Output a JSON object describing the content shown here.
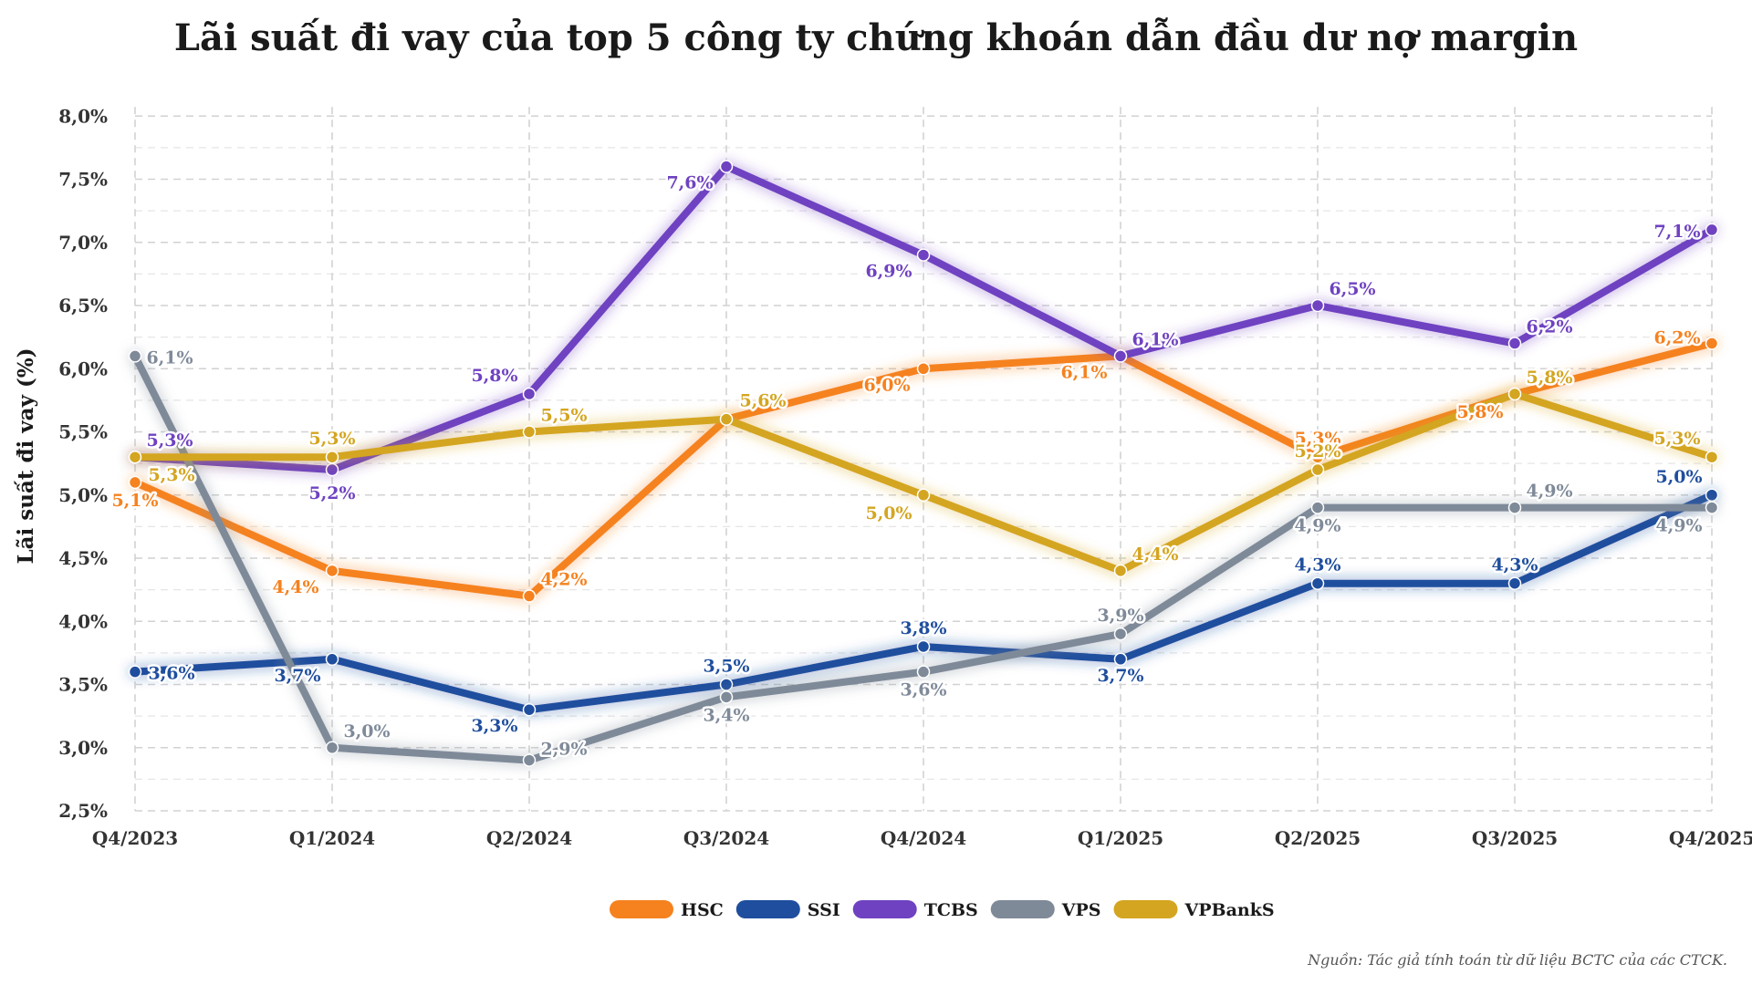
{
  "chart_data": {
    "type": "line",
    "title": "Lãi suất đi vay của top 5 công ty chứng khoán dẫn đầu dư nợ margin",
    "ylabel": "Lãi suất đi vay (%)",
    "xlabel": "",
    "categories": [
      "Q4/2023",
      "Q1/2024",
      "Q2/2024",
      "Q3/2024",
      "Q4/2024",
      "Q1/2025",
      "Q2/2025",
      "Q3/2025",
      "Q4/2025"
    ],
    "ylim": [
      2.5,
      8.0
    ],
    "yticks": [
      2.5,
      3.0,
      3.5,
      4.0,
      4.5,
      5.0,
      5.5,
      6.0,
      6.5,
      7.0,
      7.5,
      8.0
    ],
    "ytick_labels": [
      "2,5%",
      "3,0%",
      "3,5%",
      "4,0%",
      "4,5%",
      "5,0%",
      "5,5%",
      "6,0%",
      "6,5%",
      "7,0%",
      "7,5%",
      "8,0%"
    ],
    "grid": true,
    "legend_position": "bottom-center",
    "series": [
      {
        "name": "HSC",
        "color": "#F5821F",
        "values": [
          5.1,
          4.4,
          4.2,
          5.6,
          6.0,
          6.1,
          5.3,
          5.8,
          6.2
        ],
        "labels": [
          "5,1%",
          "4,4%",
          "4,2%",
          "5,6%",
          "6,0%",
          "6,1%",
          "5,3%",
          "5,8%",
          "6,2%"
        ]
      },
      {
        "name": "SSI",
        "color": "#1F4E9E",
        "values": [
          3.6,
          3.7,
          3.3,
          3.5,
          3.8,
          3.7,
          4.3,
          4.3,
          5.0
        ],
        "labels": [
          "3,6%",
          "3,7%",
          "3,3%",
          "3,5%",
          "3,8%",
          "3,7%",
          "4,3%",
          "4,3%",
          "5,0%"
        ]
      },
      {
        "name": "TCBS",
        "color": "#6F42C1",
        "values": [
          5.3,
          5.2,
          5.8,
          7.6,
          6.9,
          6.1,
          6.5,
          6.2,
          7.1
        ],
        "labels": [
          "5,3%",
          "5,2%",
          "5,8%",
          "7,6%",
          "6,9%",
          "6,1%",
          "6,5%",
          "6,2%",
          "7,1%"
        ]
      },
      {
        "name": "VPS",
        "color": "#7F8A99",
        "values": [
          6.1,
          3.0,
          2.9,
          3.4,
          3.6,
          3.9,
          4.9,
          4.9,
          4.9
        ],
        "labels": [
          "6,1%",
          "3,0%",
          "2,9%",
          "3,4%",
          "3,6%",
          "3,9%",
          "4,9%",
          "4,9%",
          "4,9%"
        ]
      },
      {
        "name": "VPBankS",
        "color": "#D4A520",
        "values": [
          5.3,
          5.3,
          5.5,
          5.6,
          5.0,
          4.4,
          5.2,
          5.8,
          5.3
        ],
        "labels": [
          "5,3%",
          "5,3%",
          "5,5%",
          "5,6%",
          "5,0%",
          "4,4%",
          "5,2%",
          "5,8%",
          "5,3%"
        ]
      }
    ],
    "source": "Nguồn: Tác giả tính toán từ dữ liệu BCTC của các CTCK."
  }
}
